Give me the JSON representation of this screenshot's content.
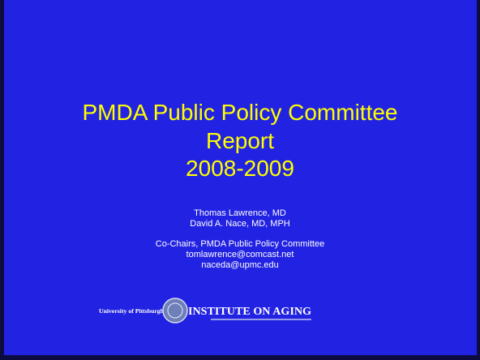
{
  "slide": {
    "title_lines": [
      "PMDA Public Policy Committee",
      "Report",
      "2008-2009"
    ],
    "authors": [
      "Thomas Lawrence, MD",
      "David A. Nace, MD, MPH"
    ],
    "contact": [
      "Co-Chairs, PMDA Public Policy Committee",
      "tomlawrence@comcast.net",
      "naceda@upmc.edu"
    ],
    "logo": {
      "university": "University of Pittsburgh",
      "institute": "INSTITUTE ON AGING"
    }
  }
}
